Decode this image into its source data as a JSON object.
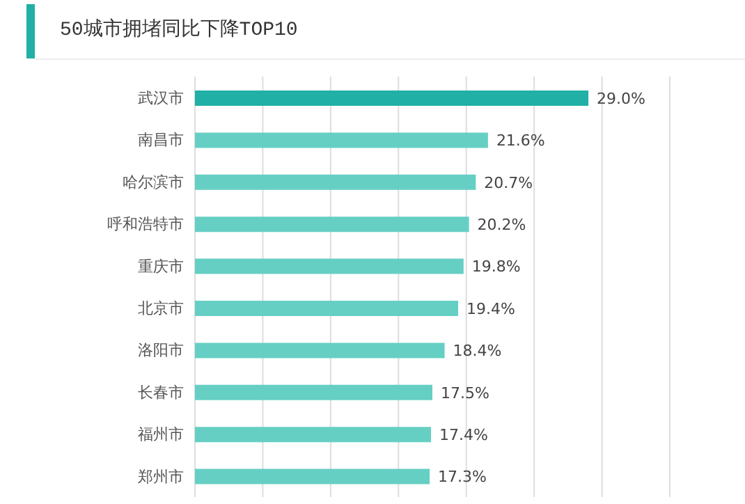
{
  "chart_data": {
    "type": "bar",
    "orientation": "horizontal",
    "title": "50城市拥堵同比下降TOP10",
    "categories": [
      "武汉市",
      "南昌市",
      "哈尔滨市",
      "呼和浩特市",
      "重庆市",
      "北京市",
      "洛阳市",
      "长春市",
      "福州市",
      "郑州市"
    ],
    "values": [
      29.0,
      21.6,
      20.7,
      20.2,
      19.8,
      19.4,
      18.4,
      17.5,
      17.4,
      17.3
    ],
    "colors": [
      "#20b0a5",
      "#66cfc4",
      "#66cfc4",
      "#66cfc4",
      "#66cfc4",
      "#66cfc4",
      "#66cfc4",
      "#66cfc4",
      "#66cfc4",
      "#66cfc4"
    ],
    "value_labels": [
      "29.0%",
      "21.6%",
      "20.7%",
      "20.2%",
      "19.8%",
      "19.4%",
      "18.4%",
      "17.5%",
      "17.4%",
      "17.3%"
    ],
    "xlim": [
      0,
      35
    ],
    "xticks": [
      {
        "value": 0,
        "label": null
      },
      {
        "value": 5,
        "label": null
      },
      {
        "value": 10,
        "label": null
      },
      {
        "value": 15,
        "label": null
      },
      {
        "value": 20,
        "label": null
      },
      {
        "value": 25,
        "label": null
      },
      {
        "value": 30,
        "label": null
      },
      {
        "value": 35,
        "label": null
      }
    ],
    "tick_labels": "y",
    "grid": "x",
    "legend": false
  }
}
